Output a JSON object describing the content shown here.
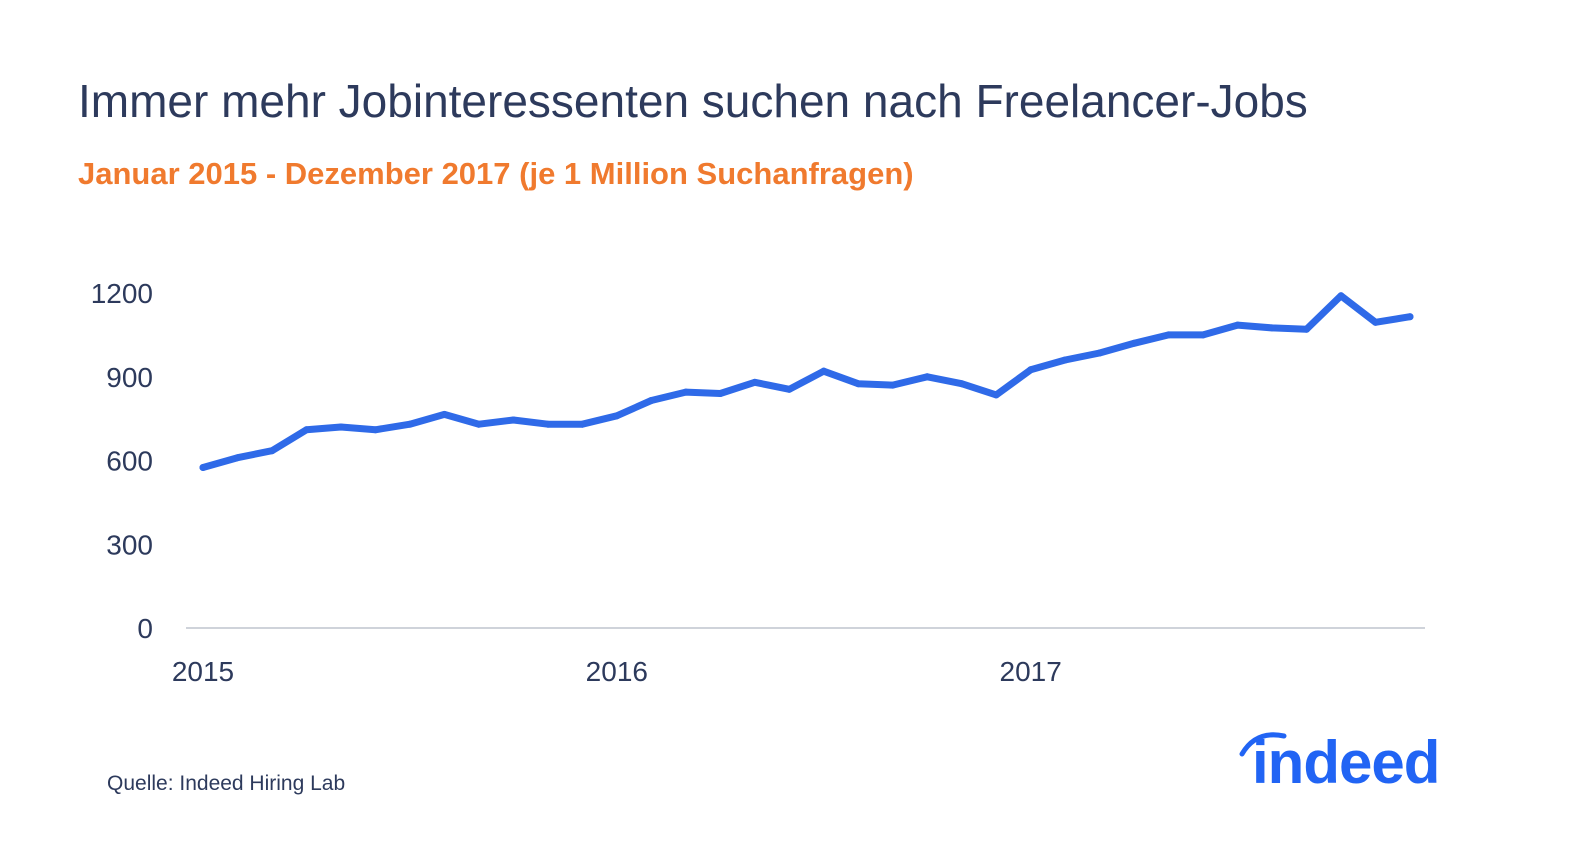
{
  "title": "Immer mehr Jobinteressenten suchen nach Freelancer-Jobs",
  "subtitle": "Januar 2015 - Dezember 2017 (je 1 Million Suchanfragen)",
  "source": "Quelle: Indeed Hiring Lab",
  "logo": {
    "text": "indeed",
    "icon": "indeed-arc-icon",
    "color": "#2164f4"
  },
  "colors": {
    "line": "#2f6ae8",
    "text": "#2d3a5c",
    "subtitle": "#f07a2e",
    "axis": "#cfd3da"
  },
  "chart_data": {
    "type": "line",
    "title": "Immer mehr Jobinteressenten suchen nach Freelancer-Jobs",
    "subtitle": "Januar 2015 - Dezember 2017 (je 1 Million Suchanfragen)",
    "xlabel": "",
    "ylabel": "",
    "ylim": [
      0,
      1200
    ],
    "yticks": [
      "0",
      "300",
      "600",
      "900",
      "1200"
    ],
    "xticks": [
      "2015",
      "2016",
      "2017"
    ],
    "grid": false,
    "x": [
      "2015-01",
      "2015-02",
      "2015-03",
      "2015-04",
      "2015-05",
      "2015-06",
      "2015-07",
      "2015-08",
      "2015-09",
      "2015-10",
      "2015-11",
      "2015-12",
      "2016-01",
      "2016-02",
      "2016-03",
      "2016-04",
      "2016-05",
      "2016-06",
      "2016-07",
      "2016-08",
      "2016-09",
      "2016-10",
      "2016-11",
      "2016-12",
      "2017-01",
      "2017-02",
      "2017-03",
      "2017-04",
      "2017-05",
      "2017-06",
      "2017-07",
      "2017-08",
      "2017-09",
      "2017-10",
      "2017-11",
      "2017-12"
    ],
    "series": [
      {
        "values": [
          575,
          610,
          635,
          710,
          720,
          710,
          730,
          765,
          730,
          745,
          730,
          730,
          760,
          815,
          845,
          840,
          880,
          855,
          920,
          875,
          870,
          900,
          875,
          835,
          925,
          960,
          985,
          1020,
          1050,
          1050,
          1085,
          1075,
          1070,
          1190,
          1095,
          1115
        ]
      }
    ]
  }
}
